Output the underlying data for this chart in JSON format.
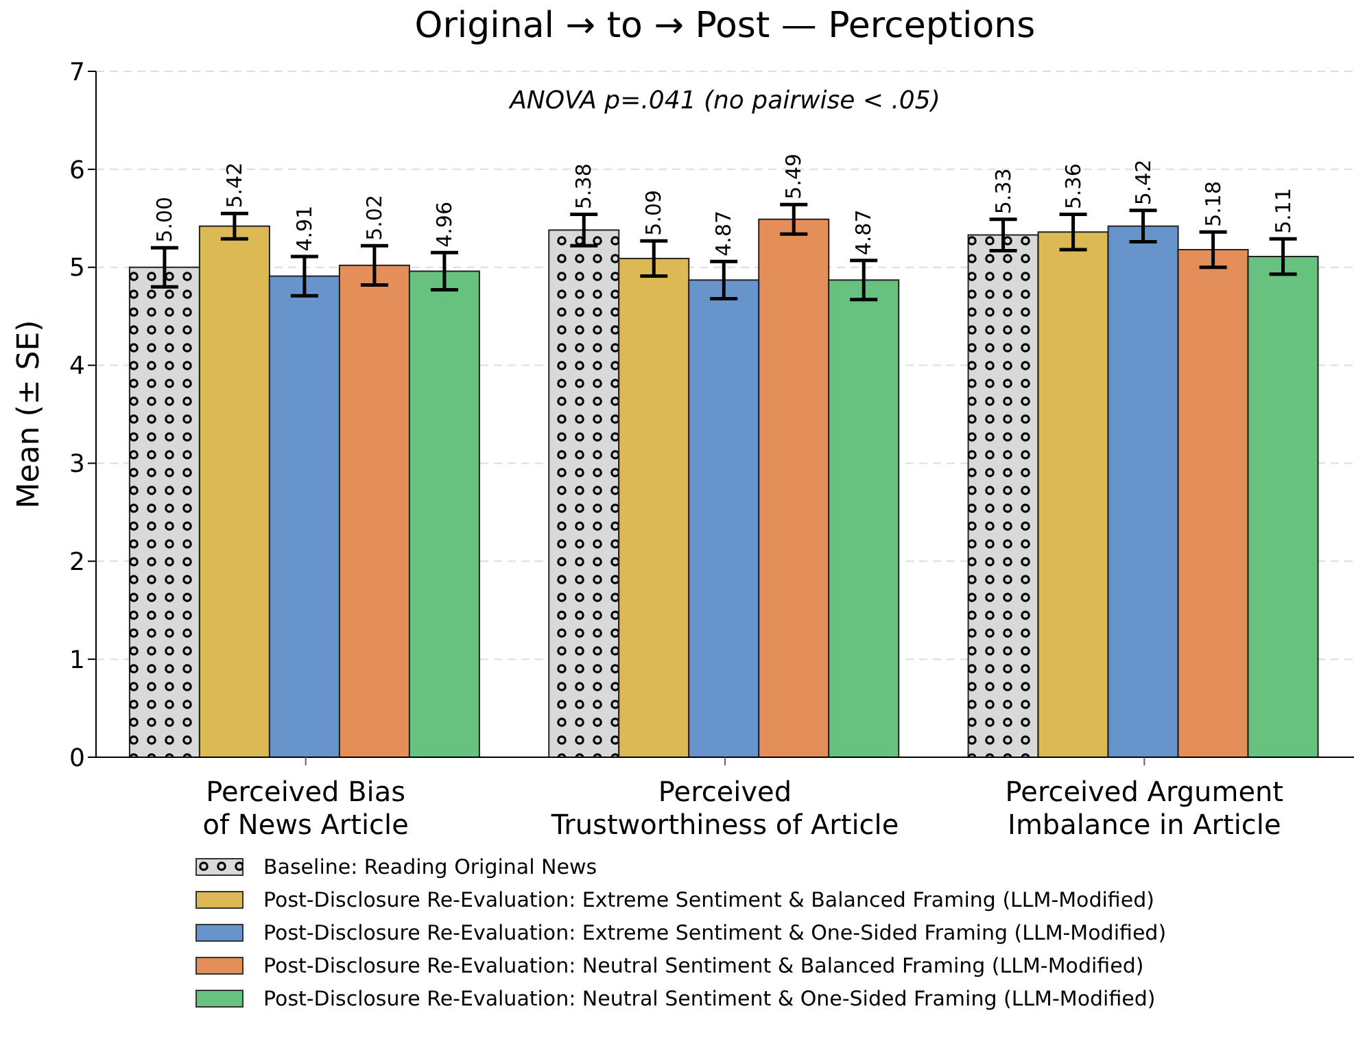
{
  "chart_data": {
    "type": "bar",
    "title": "Original → to → Post — Perceptions",
    "ylabel": "Mean (± SE)",
    "annotations": [
      "ANOVA p=.041 (no pairwise < .05)"
    ],
    "categories": [
      "Perceived Bias\nof News Article",
      "Perceived\nTrustworthiness of Article",
      "Perceived Argument\nImbalance in Article"
    ],
    "series": [
      {
        "name": "Baseline: Reading Original News",
        "color": "#d9d9d9",
        "values": [
          5.0,
          5.38,
          5.33
        ],
        "errors": [
          0.2,
          0.16,
          0.16
        ],
        "value_labels": [
          "5.00",
          "5.38",
          "5.33"
        ]
      },
      {
        "name": "Post-Disclosure Re-Evaluation: Extreme Sentiment & Balanced Framing (LLM-Modified)",
        "color": "#dcb955",
        "values": [
          5.42,
          5.09,
          5.36
        ],
        "errors": [
          0.13,
          0.18,
          0.18
        ],
        "value_labels": [
          "5.42",
          "5.09",
          "5.36"
        ]
      },
      {
        "name": "Post-Disclosure Re-Evaluation: Extreme Sentiment & One-Sided Framing (LLM-Modified)",
        "color": "#6795cb",
        "values": [
          4.91,
          4.87,
          5.42
        ],
        "errors": [
          0.2,
          0.19,
          0.16
        ],
        "value_labels": [
          "4.91",
          "4.87",
          "5.42"
        ]
      },
      {
        "name": "Post-Disclosure Re-Evaluation: Neutral Sentiment & Balanced Framing (LLM-Modified)",
        "color": "#e48f5a",
        "values": [
          5.02,
          5.49,
          5.18
        ],
        "errors": [
          0.2,
          0.15,
          0.18
        ],
        "value_labels": [
          "5.02",
          "5.49",
          "5.18"
        ]
      },
      {
        "name": "Post-Disclosure Re-Evaluation: Neutral Sentiment & One-Sided Framing (LLM-Modified)",
        "color": "#67c27f",
        "values": [
          4.96,
          4.87,
          5.11
        ],
        "errors": [
          0.19,
          0.2,
          0.18
        ],
        "value_labels": [
          "4.96",
          "4.87",
          "5.11"
        ]
      }
    ],
    "ylim": [
      0,
      7
    ],
    "yticks": [
      0,
      1,
      2,
      3,
      4,
      5,
      6,
      7
    ],
    "grid": "y",
    "legend": "bottom"
  }
}
